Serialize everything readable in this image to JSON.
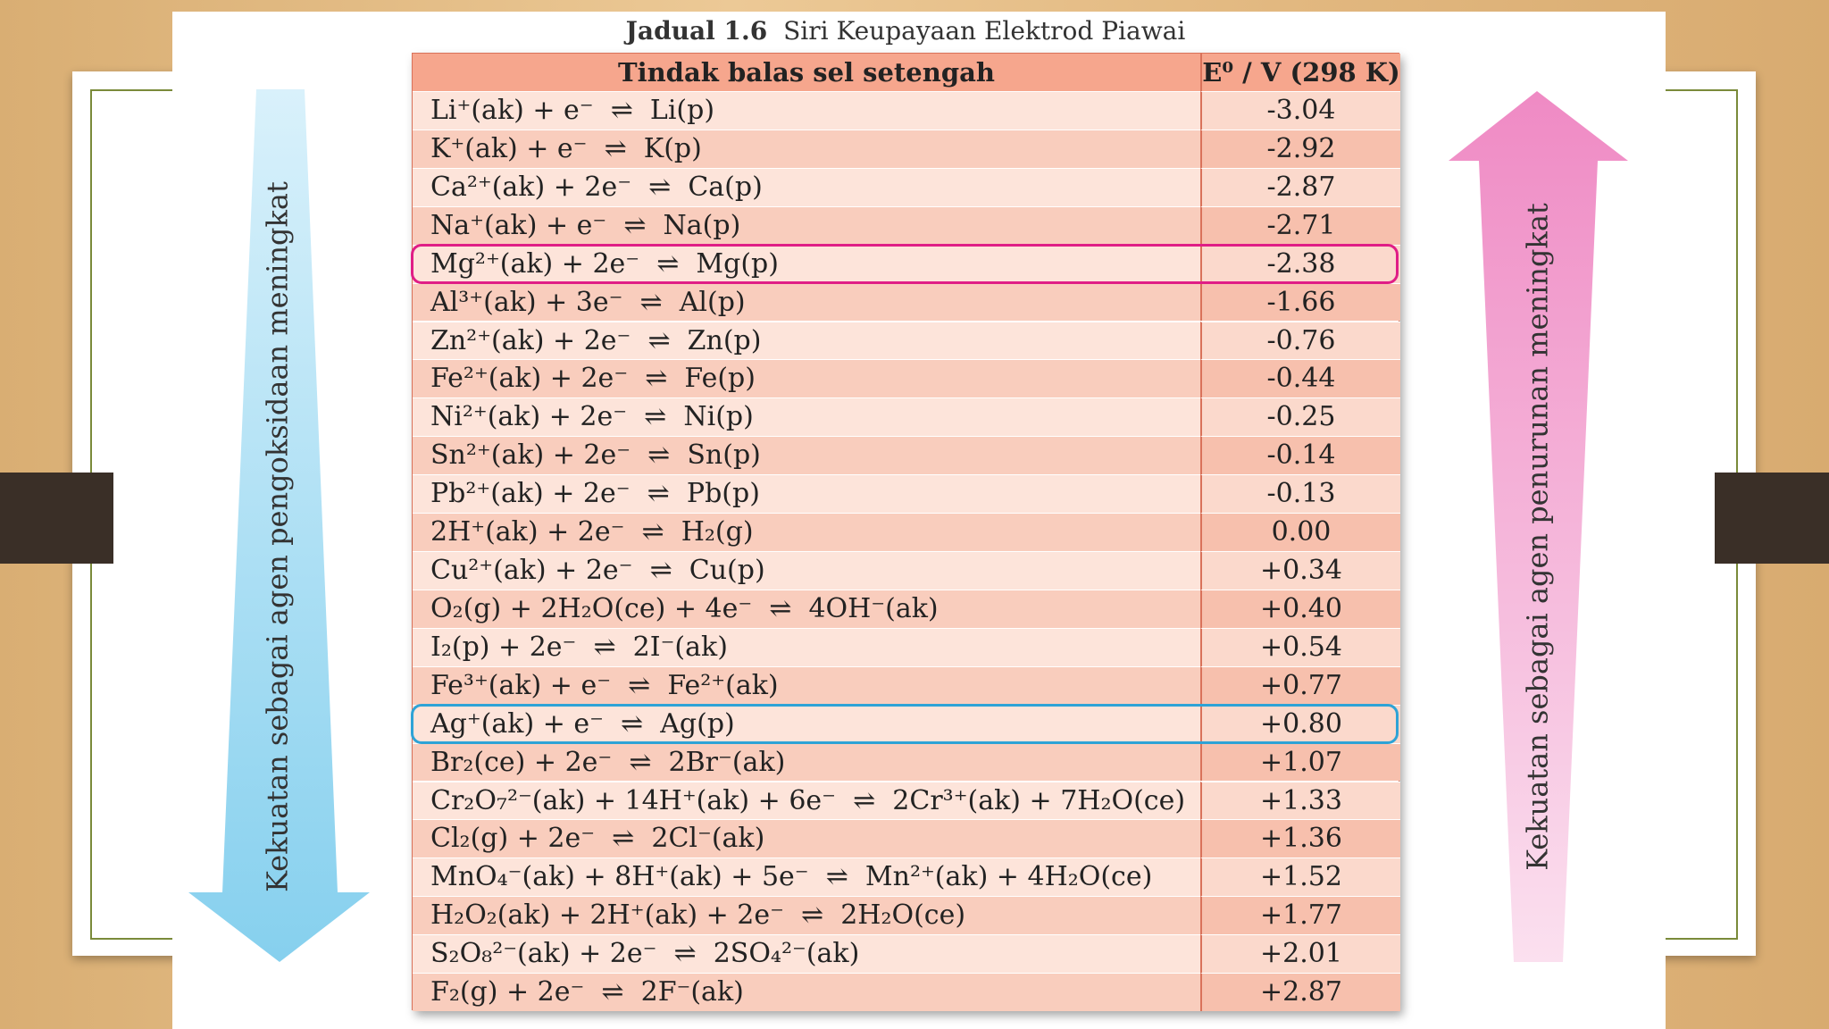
{
  "title": {
    "label": "Jadual 1.6",
    "text": "Siri Keupayaan Elektrod Piawai"
  },
  "table": {
    "header": [
      "Tindak balas sel setengah",
      "E⁰ / V (298 K)"
    ],
    "rows": [
      [
        "Li⁺(ak) + e⁻  ⇌  Li(p)",
        "-3.04"
      ],
      [
        "K⁺(ak) + e⁻  ⇌  K(p)",
        "-2.92"
      ],
      [
        "Ca²⁺(ak) + 2e⁻  ⇌  Ca(p)",
        "-2.87"
      ],
      [
        "Na⁺(ak) + e⁻  ⇌  Na(p)",
        "-2.71"
      ],
      [
        "Mg²⁺(ak) + 2e⁻  ⇌  Mg(p)",
        "-2.38"
      ],
      [
        "Al³⁺(ak) + 3e⁻  ⇌  Al(p)",
        "-1.66"
      ],
      [
        "Zn²⁺(ak) + 2e⁻  ⇌  Zn(p)",
        "-0.76"
      ],
      [
        "Fe²⁺(ak) + 2e⁻  ⇌  Fe(p)",
        "-0.44"
      ],
      [
        "Ni²⁺(ak) + 2e⁻  ⇌  Ni(p)",
        "-0.25"
      ],
      [
        "Sn²⁺(ak) + 2e⁻  ⇌  Sn(p)",
        "-0.14"
      ],
      [
        "Pb²⁺(ak) + 2e⁻  ⇌  Pb(p)",
        "-0.13"
      ],
      [
        "2H⁺(ak) + 2e⁻  ⇌  H₂(g)",
        "0.00"
      ],
      [
        "Cu²⁺(ak) + 2e⁻  ⇌  Cu(p)",
        "+0.34"
      ],
      [
        "O₂(g) + 2H₂O(ce) + 4e⁻  ⇌  4OH⁻(ak)",
        "+0.40"
      ],
      [
        "I₂(p) + 2e⁻  ⇌  2I⁻(ak)",
        "+0.54"
      ],
      [
        "Fe³⁺(ak) + e⁻  ⇌  Fe²⁺(ak)",
        "+0.77"
      ],
      [
        "Ag⁺(ak) + e⁻  ⇌  Ag(p)",
        "+0.80"
      ],
      [
        "Br₂(ce) + 2e⁻  ⇌  2Br⁻(ak)",
        "+1.07"
      ],
      [
        "Cr₂O₇²⁻(ak) + 14H⁺(ak) + 6e⁻  ⇌  2Cr³⁺(ak) + 7H₂O(ce)",
        "+1.33"
      ],
      [
        "Cl₂(g) + 2e⁻  ⇌  2Cl⁻(ak)",
        "+1.36"
      ],
      [
        "MnO₄⁻(ak) + 8H⁺(ak) + 5e⁻  ⇌  Mn²⁺(ak) + 4H₂O(ce)",
        "+1.52"
      ],
      [
        "H₂O₂(ak) + 2H⁺(ak) + 2e⁻  ⇌  2H₂O(ce)",
        "+1.77"
      ],
      [
        "S₂O₈²⁻(ak) + 2e⁻  ⇌  2SO₄²⁻(ak)",
        "+2.01"
      ],
      [
        "F₂(g) + 2e⁻  ⇌  2F⁻(ak)",
        "+2.87"
      ]
    ]
  },
  "arrows": {
    "left": "Kekuatan sebagai agen pengoksidaan meningkat",
    "right": "Kekuatan sebagai agen penurunan meningkat"
  }
}
